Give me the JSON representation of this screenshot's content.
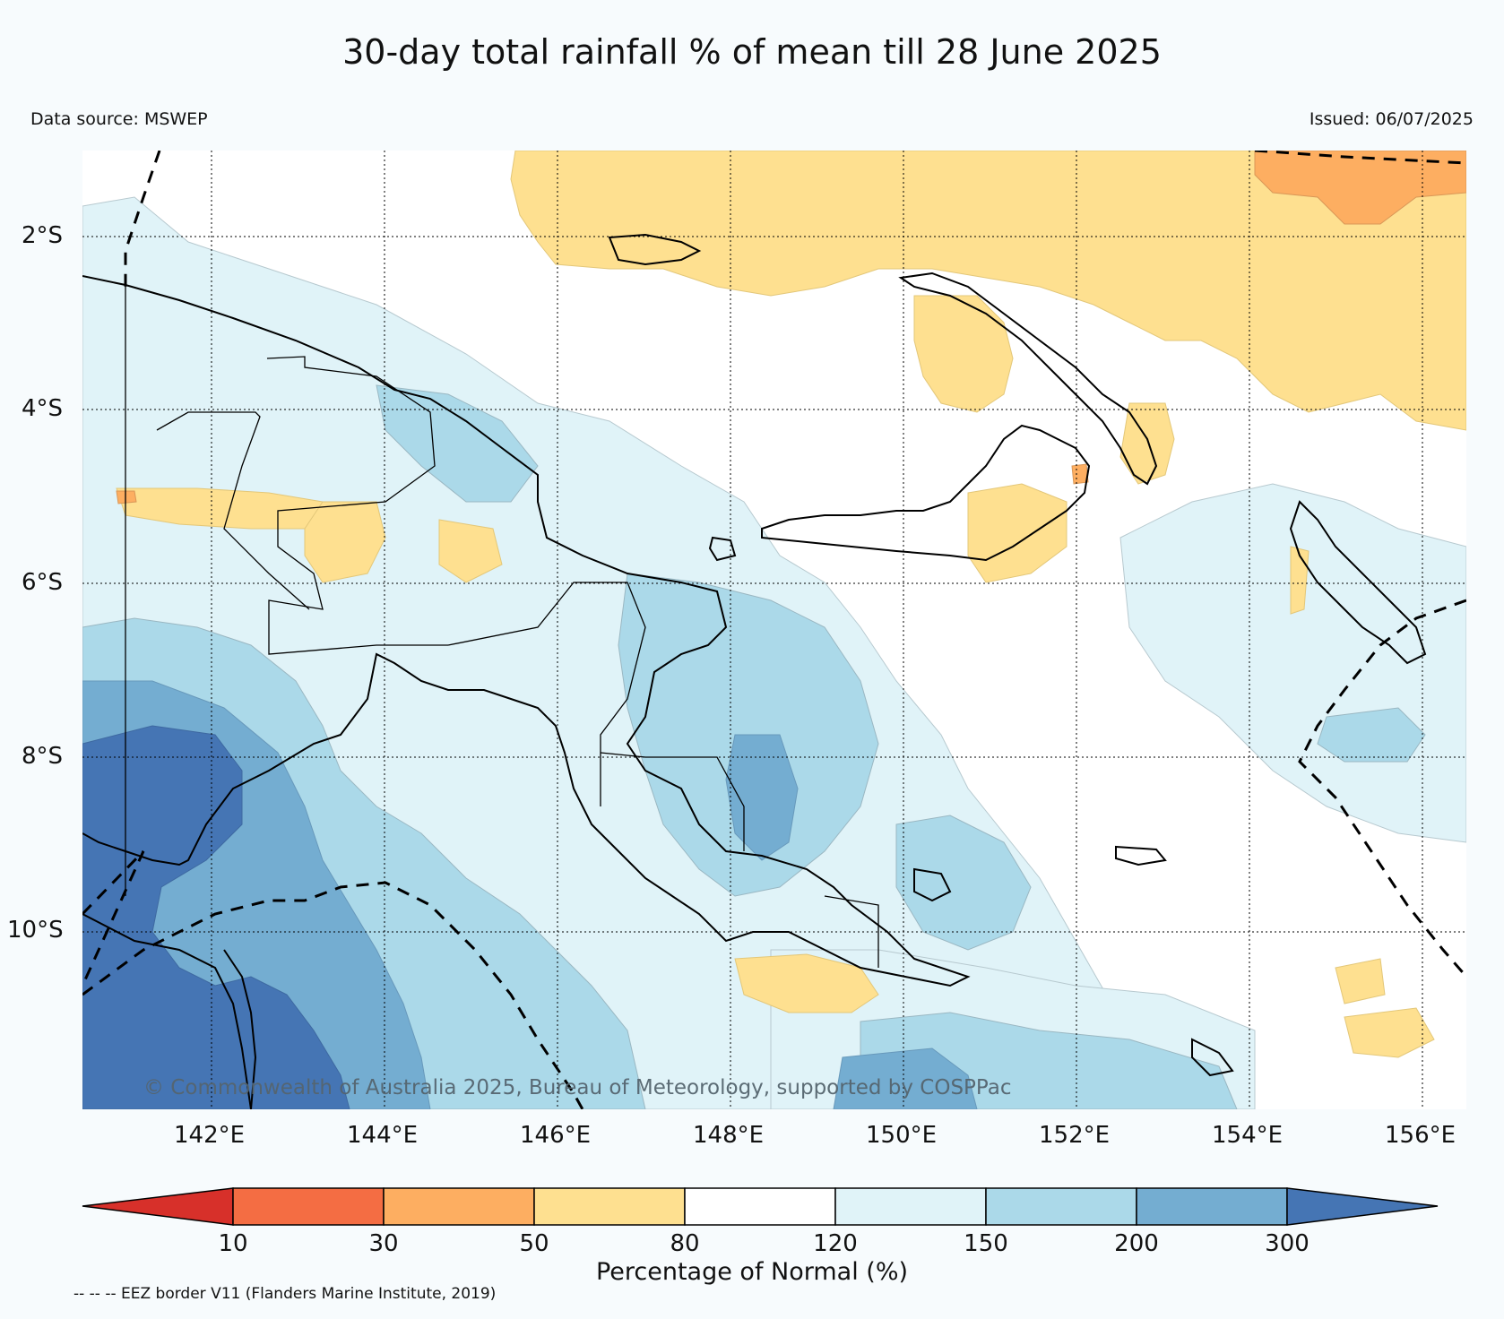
{
  "title": "30-day total rainfall % of mean till 28 June 2025",
  "data_source": "Data source: MSWEP",
  "issued": "Issued: 06/07/2025",
  "copyright": "© Commonwealth of Australia 2025, Bureau of Meteorology, supported by COSPPac",
  "eez_note": "-- -- -- EEZ border V11 (Flanders Marine Institute, 2019)",
  "map": {
    "latitude_labels": [
      "2°S",
      "4°S",
      "6°S",
      "8°S",
      "10°S"
    ],
    "longitude_labels": [
      "142°E",
      "144°E",
      "146°E",
      "148°E",
      "150°E",
      "152°E",
      "154°E",
      "156°E"
    ],
    "extent": {
      "lon": [
        140.4,
        156.5
      ],
      "lat": [
        -12.2,
        -1.0
      ]
    },
    "gridlines": true,
    "eez_border_style": "dashed black"
  },
  "colorbar": {
    "title": "Percentage of Normal (%)",
    "tick_labels": [
      "10",
      "30",
      "50",
      "80",
      "120",
      "150",
      "200",
      "300"
    ],
    "bins": [
      {
        "range": "<10",
        "color": "#d7302a"
      },
      {
        "range": "10-30",
        "color": "#f46d43"
      },
      {
        "range": "30-50",
        "color": "#fdae61"
      },
      {
        "range": "50-80",
        "color": "#fee090"
      },
      {
        "range": "80-120",
        "color": "#ffffff"
      },
      {
        "range": "120-150",
        "color": "#e0f3f8"
      },
      {
        "range": "150-200",
        "color": "#abd9e9"
      },
      {
        "range": "200-300",
        "color": "#74add1"
      },
      {
        "range": ">300",
        "color": "#4575b4"
      }
    ]
  }
}
